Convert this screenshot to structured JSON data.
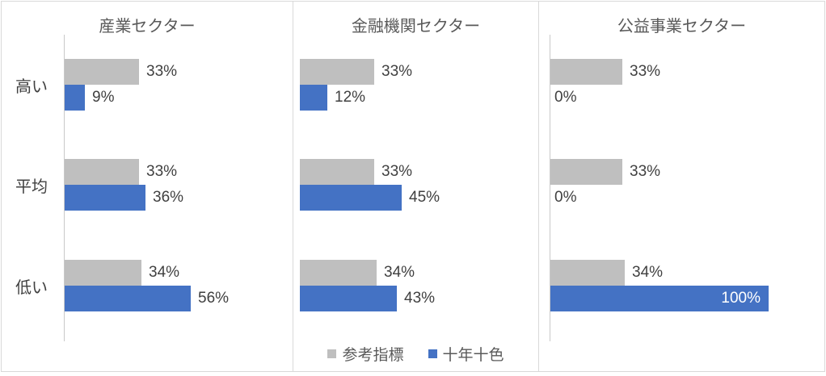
{
  "chart_data": [
    {
      "type": "bar",
      "orientation": "horizontal",
      "title": "産業セクター",
      "categories": [
        "高い",
        "平均",
        "低い"
      ],
      "series": [
        {
          "name": "参考指標",
          "values": [
            33,
            33,
            34
          ]
        },
        {
          "name": "十年十色",
          "values": [
            9,
            36,
            56
          ]
        }
      ],
      "xlim": [
        0,
        100
      ],
      "value_label_format": "{v}%",
      "grid": false,
      "category_axis_labels_visible": true
    },
    {
      "type": "bar",
      "orientation": "horizontal",
      "title": "金融機関セクター",
      "categories": [
        "高い",
        "平均",
        "低い"
      ],
      "series": [
        {
          "name": "参考指標",
          "values": [
            33,
            33,
            34
          ]
        },
        {
          "name": "十年十色",
          "values": [
            12,
            45,
            43
          ]
        }
      ],
      "xlim": [
        0,
        100
      ],
      "value_label_format": "{v}%",
      "grid": false,
      "category_axis_labels_visible": false
    },
    {
      "type": "bar",
      "orientation": "horizontal",
      "title": "公益事業セクター",
      "categories": [
        "高い",
        "平均",
        "低い"
      ],
      "series": [
        {
          "name": "参考指標",
          "values": [
            33,
            33,
            34
          ]
        },
        {
          "name": "十年十色",
          "values": [
            0,
            0,
            100
          ]
        }
      ],
      "xlim": [
        0,
        100
      ],
      "value_label_format": "{v}%",
      "grid": false,
      "category_axis_labels_visible": false
    }
  ],
  "legend": {
    "position": "bottom-center-of-middle-panel",
    "items": [
      {
        "label": "参考指標",
        "color": "#BFBFBF"
      },
      {
        "label": "十年十色",
        "color": "#4472C4"
      }
    ]
  },
  "colors": {
    "reference_series": "#BFBFBF",
    "main_series": "#4472C4",
    "panel_border": "#D9D9D9",
    "axis_line": "#C9C9C9",
    "value_label_text": "#404040",
    "value_label_inside_text": "#FFFFFF",
    "title_text": "#595959",
    "background": "#FFFFFF"
  }
}
